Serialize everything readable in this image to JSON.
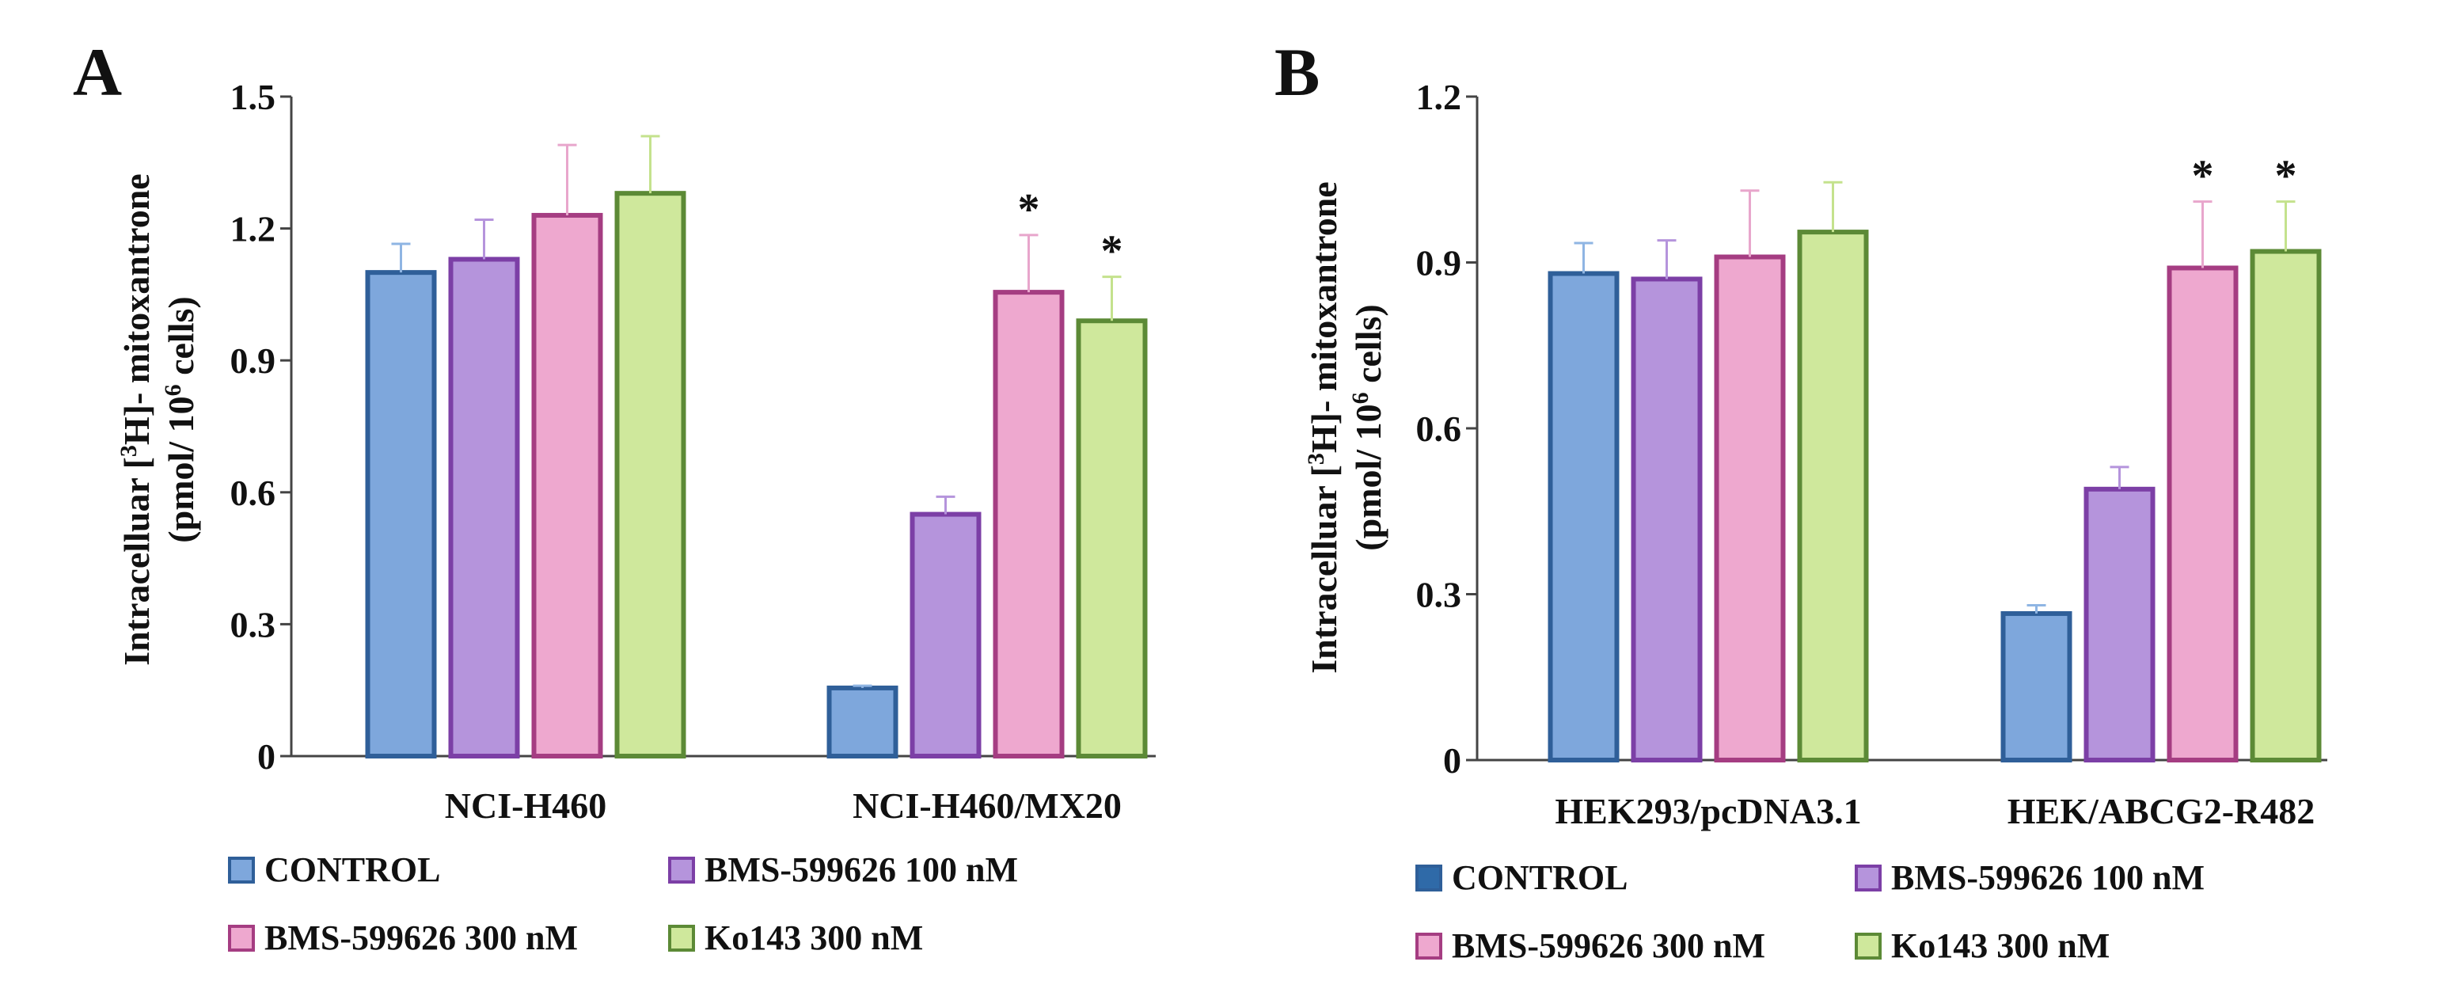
{
  "series_style": [
    {
      "fill": "#7ea7dc",
      "stroke": "#2f5f99",
      "err": "#8fb5e3"
    },
    {
      "fill": "#b594dc",
      "stroke": "#7c3fa6",
      "err": "#b594dc"
    },
    {
      "fill": "#eea8cf",
      "stroke": "#a53d82",
      "err": "#e8a6cc"
    },
    {
      "fill": "#cfe89c",
      "stroke": "#5c8a36",
      "err": "#c4e28d"
    }
  ],
  "chart_data": [
    {
      "type": "bar",
      "panel_label": "A",
      "ylabel_line1_pre": "Intracelluar [",
      "ylabel_line1_sup": "3",
      "ylabel_line1_post": "H]- mitoxantrone",
      "ylabel_line2_pre": "(pmol/ 10",
      "ylabel_line2_sup": "6",
      "ylabel_line2_post": " cells)",
      "ylim": [
        0,
        1.5
      ],
      "yticks": [
        "0",
        "0.3",
        "0.6",
        "0.9",
        "1.2",
        "1.5"
      ],
      "ytick_values": [
        0,
        0.3,
        0.6,
        0.9,
        1.2,
        1.5
      ],
      "categories": [
        "NCI-H460",
        "NCI-H460/MX20"
      ],
      "series": [
        {
          "name": "CONTROL",
          "values": [
            1.1,
            0.155
          ],
          "errors": [
            0.065,
            0.005
          ],
          "sig": [
            "",
            ""
          ]
        },
        {
          "name": "BMS-599626 100 nM",
          "values": [
            1.13,
            0.55
          ],
          "errors": [
            0.09,
            0.04
          ],
          "sig": [
            "",
            ""
          ]
        },
        {
          "name": "BMS-599626 300 nM",
          "values": [
            1.23,
            1.055
          ],
          "errors": [
            0.16,
            0.13
          ],
          "sig": [
            "",
            "*"
          ]
        },
        {
          "name": "Ko143 300 nM",
          "values": [
            1.28,
            0.99
          ],
          "errors": [
            0.13,
            0.1
          ],
          "sig": [
            "",
            "*"
          ]
        }
      ]
    },
    {
      "type": "bar",
      "panel_label": "B",
      "ylabel_line1_pre": "Intracelluar [",
      "ylabel_line1_sup": "3",
      "ylabel_line1_post": "H]- mitoxantrone",
      "ylabel_line2_pre": "(pmol/ 10",
      "ylabel_line2_sup": "6",
      "ylabel_line2_post": " cells)",
      "ylim": [
        0,
        1.2
      ],
      "yticks": [
        "0",
        "0.3",
        "0.6",
        "0.9",
        "1.2"
      ],
      "ytick_values": [
        0,
        0.3,
        0.6,
        0.9,
        1.2
      ],
      "categories": [
        "HEK293/pcDNA3.1",
        "HEK/ABCG2-R482"
      ],
      "series": [
        {
          "name": "CONTROL",
          "values": [
            0.88,
            0.265
          ],
          "errors": [
            0.055,
            0.015
          ],
          "sig": [
            "",
            ""
          ]
        },
        {
          "name": "BMS-599626 100 nM",
          "values": [
            0.87,
            0.49
          ],
          "errors": [
            0.07,
            0.04
          ],
          "sig": [
            "",
            ""
          ]
        },
        {
          "name": "BMS-599626 300 nM",
          "values": [
            0.91,
            0.89
          ],
          "errors": [
            0.12,
            0.12
          ],
          "sig": [
            "",
            "*"
          ]
        },
        {
          "name": "Ko143 300 nM",
          "values": [
            0.955,
            0.92
          ],
          "errors": [
            0.09,
            0.09
          ],
          "sig": [
            "",
            "*"
          ]
        }
      ]
    }
  ]
}
